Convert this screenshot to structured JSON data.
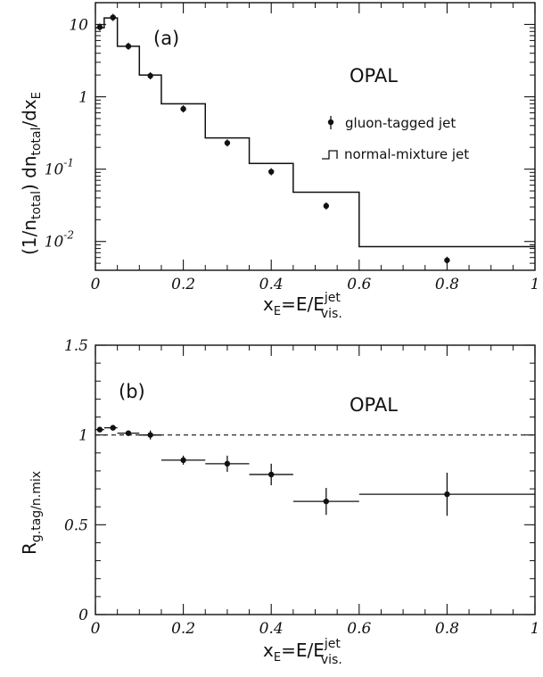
{
  "chart_data": [
    {
      "type": "scatter",
      "panel": "(a)",
      "brand": "OPAL",
      "xlabel": {
        "main": "x",
        "sub": "E",
        "eq": "=E/E",
        "sup": "jet",
        "sub2": "vis."
      },
      "ylabel": {
        "pre": "(1/n",
        "sub1": "total",
        "mid": ") dn",
        "sub2": "total",
        "mid2": "/dx",
        "sub3": "E"
      },
      "xlim": [
        0,
        1
      ],
      "ylim": [
        0.004,
        20
      ],
      "yscale": "log",
      "xticks": [
        {
          "value": 0,
          "label": "0"
        },
        {
          "value": 0.2,
          "label": "0.2"
        },
        {
          "value": 0.4,
          "label": "0.4"
        },
        {
          "value": 0.6,
          "label": "0.6"
        },
        {
          "value": 0.8,
          "label": "0.8"
        },
        {
          "value": 1,
          "label": "1"
        }
      ],
      "yticks": [
        {
          "value": 10,
          "label": "10",
          "sup": ""
        },
        {
          "value": 1,
          "label": "1",
          "sup": ""
        },
        {
          "value": 0.1,
          "label": "10",
          "sup": "-1"
        },
        {
          "value": 0.01,
          "label": "10",
          "sup": "-2"
        }
      ],
      "legend": {
        "placement": "right",
        "entries": [
          {
            "label": "gluon-tagged jet",
            "marker": "point-errorbar"
          },
          {
            "label": "normal-mixture jet",
            "marker": "histogram"
          }
        ]
      },
      "series": [
        {
          "name": "gluon-tagged jet",
          "kind": "points",
          "x": [
            0.01,
            0.04,
            0.075,
            0.125,
            0.2,
            0.3,
            0.4,
            0.525,
            0.8
          ],
          "y": [
            9.2,
            12.5,
            5.0,
            1.95,
            0.68,
            0.23,
            0.092,
            0.031,
            0.0055
          ]
        },
        {
          "name": "normal-mixture jet",
          "kind": "histogram",
          "edges": [
            0,
            0.02,
            0.05,
            0.1,
            0.15,
            0.25,
            0.35,
            0.45,
            0.6,
            1.0
          ],
          "values": [
            9.0,
            12.3,
            5.0,
            2.0,
            0.8,
            0.27,
            0.12,
            0.048,
            0.0085
          ]
        }
      ]
    },
    {
      "type": "scatter",
      "panel": "(b)",
      "brand": "OPAL",
      "xlabel": {
        "main": "x",
        "sub": "E",
        "eq": "=E/E",
        "sup": "jet",
        "sub2": "vis."
      },
      "ylabel": {
        "main": "R",
        "sub": "g.tag/n.mix"
      },
      "xlim": [
        0,
        1
      ],
      "ylim": [
        0,
        1.5
      ],
      "xticks": [
        {
          "value": 0,
          "label": "0"
        },
        {
          "value": 0.2,
          "label": "0.2"
        },
        {
          "value": 0.4,
          "label": "0.4"
        },
        {
          "value": 0.6,
          "label": "0.6"
        },
        {
          "value": 0.8,
          "label": "0.8"
        },
        {
          "value": 1,
          "label": "1"
        }
      ],
      "yticks": [
        {
          "value": 0,
          "label": "0"
        },
        {
          "value": 0.5,
          "label": "0.5"
        },
        {
          "value": 1,
          "label": "1"
        },
        {
          "value": 1.5,
          "label": "1.5"
        }
      ],
      "reference_line": {
        "y": 1.0,
        "style": "dashed"
      },
      "series": [
        {
          "kind": "points",
          "x": [
            0.01,
            0.04,
            0.075,
            0.125,
            0.2,
            0.3,
            0.4,
            0.525,
            0.8
          ],
          "y": [
            1.03,
            1.04,
            1.01,
            1.0,
            0.86,
            0.84,
            0.78,
            0.63,
            0.67
          ],
          "yerr": [
            0.012,
            0.012,
            0.015,
            0.025,
            0.025,
            0.045,
            0.06,
            0.075,
            0.12
          ],
          "xlo": [
            0.0,
            0.02,
            0.05,
            0.1,
            0.15,
            0.25,
            0.35,
            0.45,
            0.6
          ],
          "xhi": [
            0.02,
            0.05,
            0.1,
            0.15,
            0.25,
            0.35,
            0.45,
            0.6,
            1.0
          ]
        }
      ]
    }
  ]
}
